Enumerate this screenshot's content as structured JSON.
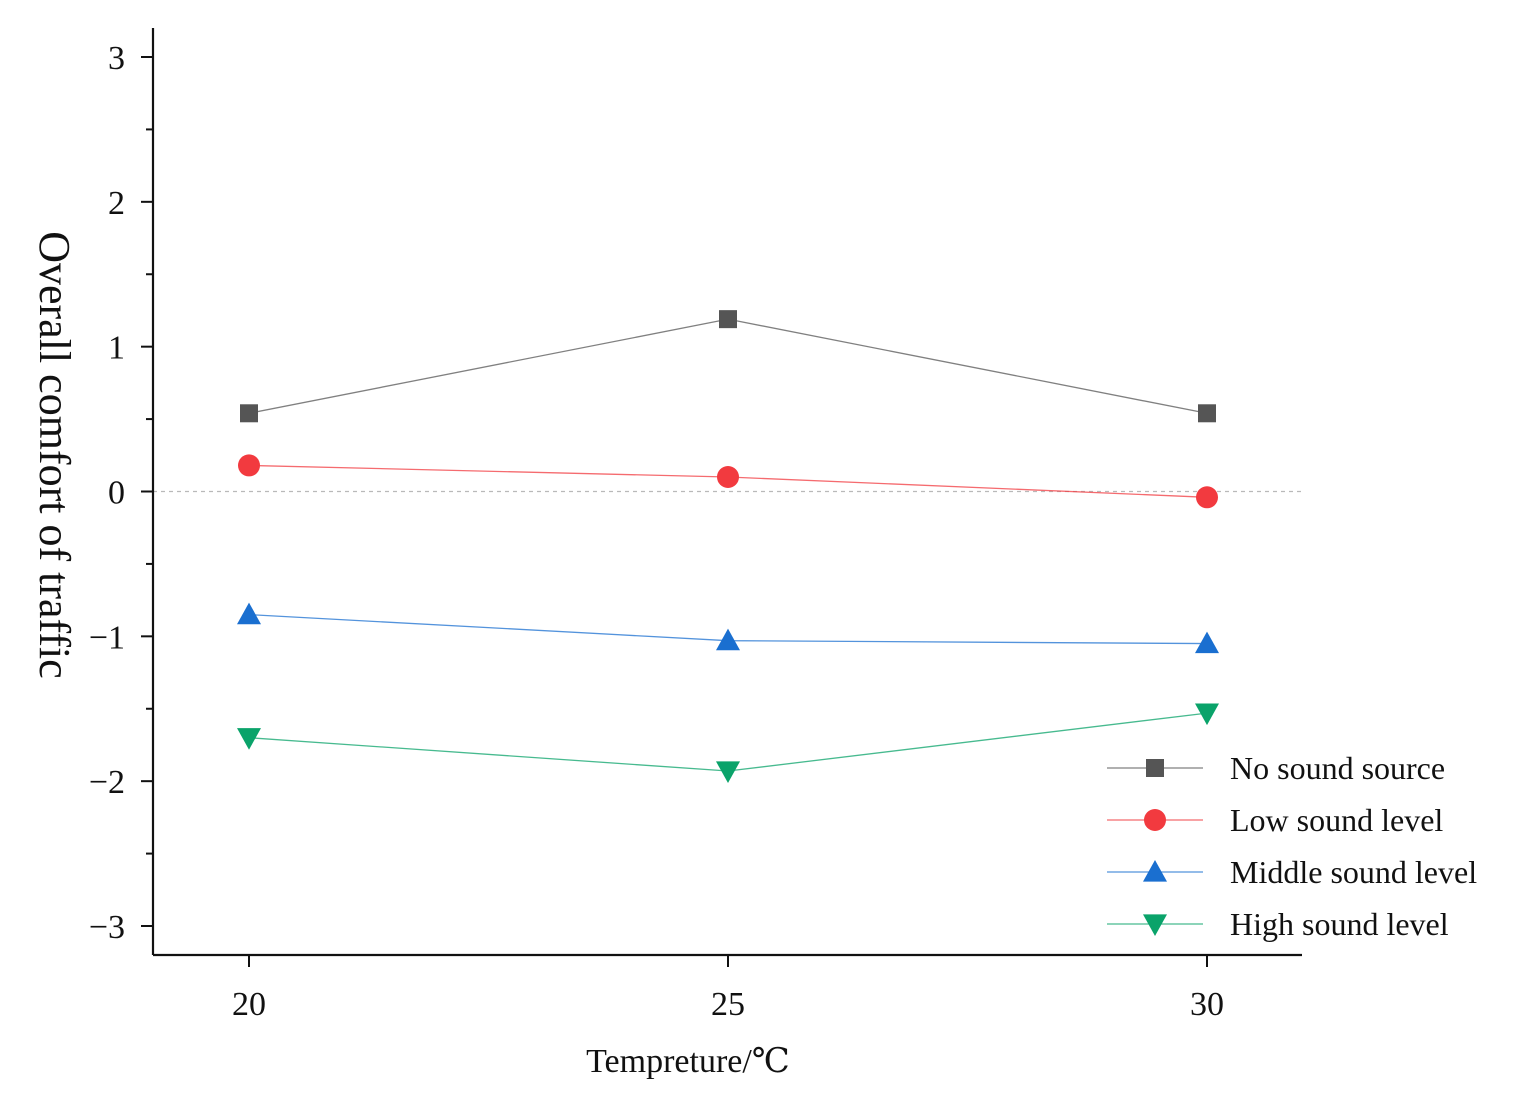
{
  "chart_data": {
    "type": "line",
    "title": "",
    "xlabel": "Tempreture/℃",
    "ylabel": "Overall comfort of traffic",
    "x": [
      20,
      25,
      30
    ],
    "xlim": [
      19,
      31
    ],
    "ylim": [
      -3.2,
      3.25
    ],
    "x_ticks": [
      {
        "value": 20,
        "label": "20"
      },
      {
        "value": 25,
        "label": "25"
      },
      {
        "value": 30,
        "label": "30"
      }
    ],
    "y_ticks": [
      {
        "value": 3,
        "label": "3"
      },
      {
        "value": 2,
        "label": "2"
      },
      {
        "value": 1,
        "label": "1"
      },
      {
        "value": 0,
        "label": "0"
      },
      {
        "value": -1,
        "label": "−1"
      },
      {
        "value": -2,
        "label": "−2"
      },
      {
        "value": -3,
        "label": "−3"
      }
    ],
    "reference_line": 0,
    "legend_position": "bottom-right",
    "series": [
      {
        "name": "No sound source",
        "values": [
          0.54,
          1.19,
          0.54
        ],
        "color": "#555555",
        "marker": "square"
      },
      {
        "name": "Low sound level",
        "values": [
          0.18,
          0.1,
          -0.04
        ],
        "color": "#f23a3f",
        "marker": "circle"
      },
      {
        "name": "Middle sound level",
        "values": [
          -0.85,
          -1.03,
          -1.05
        ],
        "color": "#1a6fd0",
        "marker": "triangle-up"
      },
      {
        "name": "High sound level",
        "values": [
          -1.7,
          -1.93,
          -1.53
        ],
        "color": "#0aa36a",
        "marker": "triangle-down"
      }
    ]
  }
}
